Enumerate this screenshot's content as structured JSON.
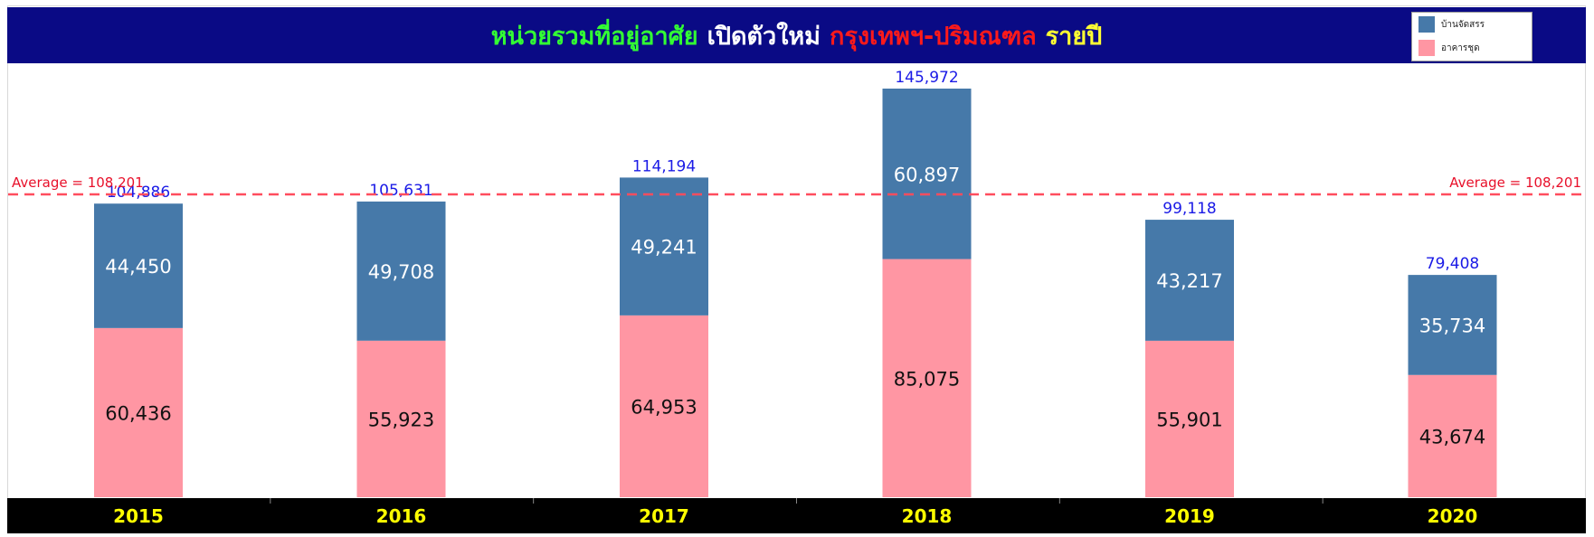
{
  "title": {
    "part1": "หน่วยรวมที่อยู่อาศัย",
    "part2": "เปิดตัวใหม่",
    "part3": "กรุงเทพฯ-ปริมณฑล",
    "part4": "รายปี",
    "colors": {
      "part1": "#33ff33",
      "part2": "#ffffff",
      "part3": "#ff1a1a",
      "part4": "#ffff33"
    }
  },
  "colors": {
    "title_bar": "#0a0a85",
    "house": "#4679a9",
    "condo": "#ff96a3",
    "total_label": "#1a1ae6",
    "average_line": "#ff4d5e",
    "axis_bar": "#000000",
    "tick_label": "#ffff00"
  },
  "legend": {
    "items": [
      {
        "label": "บ้านจัดสรร",
        "color": "#4679a9"
      },
      {
        "label": "อาคารชุด",
        "color": "#ff96a3"
      }
    ]
  },
  "chart_data": {
    "type": "bar",
    "stacked": true,
    "categories": [
      "2015",
      "2016",
      "2017",
      "2018",
      "2019",
      "2020"
    ],
    "series": [
      {
        "name": "อาคารชุด",
        "values": [
          60436,
          55923,
          64953,
          85075,
          55901,
          43674
        ]
      },
      {
        "name": "บ้านจัดสรร",
        "values": [
          44450,
          49708,
          49241,
          60897,
          43217,
          35734
        ]
      }
    ],
    "totals": [
      "104,886",
      "105,631",
      "114,194",
      "145,972",
      "99,118",
      "79,408"
    ],
    "value_labels": {
      "condo": [
        "60,436",
        "55,923",
        "64,953",
        "85,075",
        "55,901",
        "43,674"
      ],
      "house": [
        "44,450",
        "49,708",
        "49,241",
        "60,897",
        "43,217",
        "35,734"
      ]
    },
    "average": {
      "value": 108201,
      "label_left": "Average = 108,201",
      "label_right": "Average = 108,201"
    },
    "ylim": [
      0,
      150000
    ],
    "grid": false,
    "legend_position": "top-right"
  }
}
